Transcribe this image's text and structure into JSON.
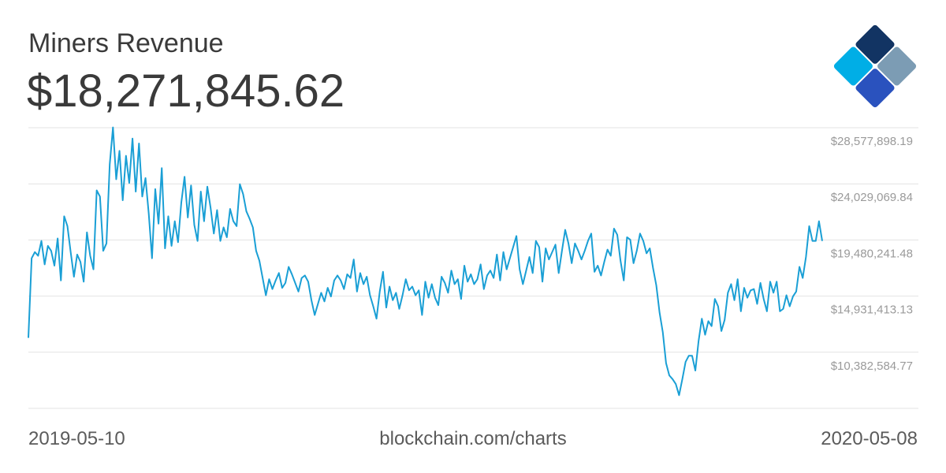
{
  "header": {
    "title": "Miners Revenue",
    "current_value": "$18,271,845.62"
  },
  "footer": {
    "start_date": "2019-05-10",
    "source": "blockchain.com/charts",
    "end_date": "2020-05-08"
  },
  "logo": {
    "name": "blockchain-logo",
    "colors": [
      "#123463",
      "#7c9cb4",
      "#2a52be",
      "#00aee6",
      "#b5d6ea"
    ]
  },
  "chart_data": {
    "type": "line",
    "title": "Miners Revenue",
    "xlabel": "",
    "ylabel": "",
    "x_start": "2019-05-10",
    "x_end": "2020-05-08",
    "ylim": [
      5833756.42,
      28577898.19
    ],
    "grid": true,
    "y_ticks": [
      28577898.19,
      24029069.84,
      19480241.48,
      14931413.13,
      10382584.77
    ],
    "y_tick_labels": [
      "$28,577,898.19",
      "$24,029,069.84",
      "$19,480,241.48",
      "$14,931,413.13",
      "$10,382,584.77"
    ],
    "line_color": "#1a9fd5",
    "series": [
      {
        "values": [
          11550000,
          18000000,
          18500000,
          18200000,
          19400000,
          17500000,
          19000000,
          18600000,
          17400000,
          19600000,
          16200000,
          21400000,
          20600000,
          18500000,
          16500000,
          18300000,
          17700000,
          16100000,
          20100000,
          18200000,
          17100000,
          23500000,
          23000000,
          18600000,
          19200000,
          25600000,
          28600000,
          24400000,
          26700000,
          22700000,
          26300000,
          24100000,
          27700000,
          23400000,
          27300000,
          23000000,
          24500000,
          21600000,
          18000000,
          23600000,
          20800000,
          25300000,
          18800000,
          21400000,
          19000000,
          21000000,
          19300000,
          22500000,
          24600000,
          21300000,
          23900000,
          20700000,
          19400000,
          23400000,
          21000000,
          23800000,
          22100000,
          20000000,
          21900000,
          19400000,
          20500000,
          19700000,
          22000000,
          21000000,
          20600000,
          24000000,
          23200000,
          21800000,
          21200000,
          20500000,
          18600000,
          17800000,
          16400000,
          15000000,
          16300000,
          15500000,
          16200000,
          16800000,
          15600000,
          16000000,
          17300000,
          16700000,
          16000000,
          15300000,
          16400000,
          16600000,
          16100000,
          14600000,
          13400000,
          14300000,
          15200000,
          14500000,
          15600000,
          14900000,
          16200000,
          16600000,
          16200000,
          15500000,
          16700000,
          16400000,
          17900000,
          15300000,
          16800000,
          15900000,
          16500000,
          15000000,
          14100000,
          13100000,
          15300000,
          16900000,
          14000000,
          15700000,
          14600000,
          15200000,
          13900000,
          15000000,
          16300000,
          15400000,
          15700000,
          15000000,
          15400000,
          13400000,
          16100000,
          14800000,
          15900000,
          14800000,
          14200000,
          16500000,
          16000000,
          15200000,
          17000000,
          15900000,
          16300000,
          14700000,
          17400000,
          16100000,
          16700000,
          15900000,
          16300000,
          17500000,
          15500000,
          16600000,
          17000000,
          16400000,
          18300000,
          16200000,
          18500000,
          17100000,
          18000000,
          18900000,
          19800000,
          17100000,
          15900000,
          17000000,
          18100000,
          16800000,
          19400000,
          18900000,
          16100000,
          18800000,
          17900000,
          18500000,
          19100000,
          16800000,
          18600000,
          20300000,
          19200000,
          17600000,
          19200000,
          18600000,
          17900000,
          18600000,
          19400000,
          20000000,
          16900000,
          17400000,
          16600000,
          17700000,
          18700000,
          18200000,
          20400000,
          19900000,
          17800000,
          16200000,
          19700000,
          19500000,
          17600000,
          18600000,
          20000000,
          19400000,
          18400000,
          18800000,
          17200000,
          15800000,
          13600000,
          12000000,
          9500000,
          8500000,
          8200000,
          7800000,
          6900000,
          8200000,
          9600000,
          10100000,
          10100000,
          8900000,
          11300000,
          13100000,
          11800000,
          12900000,
          12500000,
          14700000,
          14100000,
          12100000,
          13000000,
          15200000,
          15900000,
          14600000,
          16300000,
          13700000,
          15600000,
          14800000,
          15400000,
          15500000,
          14300000,
          16000000,
          14700000,
          13700000,
          16100000,
          15200000,
          16100000,
          13700000,
          13900000,
          15000000,
          14100000,
          14900000,
          15300000,
          17300000,
          16400000,
          18100000,
          20600000,
          19400000,
          19400000,
          21000000,
          19400000
        ]
      }
    ]
  }
}
